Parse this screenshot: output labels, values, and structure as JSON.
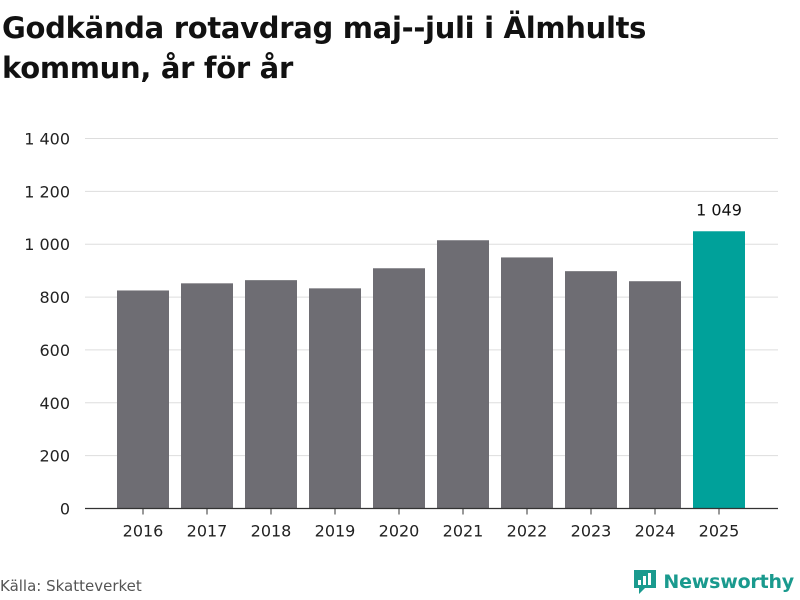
{
  "title": "Godkända rotavdrag maj--juli i Älmhults kommun, år för år",
  "source": "Källa: Skatteverket",
  "brand": {
    "name": "Newsworthy",
    "icon": "newsworthy-logo-icon"
  },
  "colors": {
    "bar": "#6e6d73",
    "highlight": "#00a19a",
    "grid": "#dddddd",
    "axis": "#333333",
    "brand": "#1a9a8e"
  },
  "chart_data": {
    "type": "bar",
    "categories": [
      "2016",
      "2017",
      "2018",
      "2019",
      "2020",
      "2021",
      "2022",
      "2023",
      "2024",
      "2025"
    ],
    "values": [
      825,
      852,
      864,
      833,
      909,
      1015,
      950,
      898,
      860,
      1049
    ],
    "highlight_index": 9,
    "data_labels": [
      {
        "index": 9,
        "text": "1 049"
      }
    ],
    "ylim": [
      0,
      1400
    ],
    "yticks": [
      0,
      200,
      400,
      600,
      800,
      1000,
      1200,
      1400
    ],
    "ytick_labels": [
      "0",
      "200",
      "400",
      "600",
      "800",
      "1 000",
      "1 200",
      "1 400"
    ],
    "grid": true,
    "legend": "none"
  }
}
